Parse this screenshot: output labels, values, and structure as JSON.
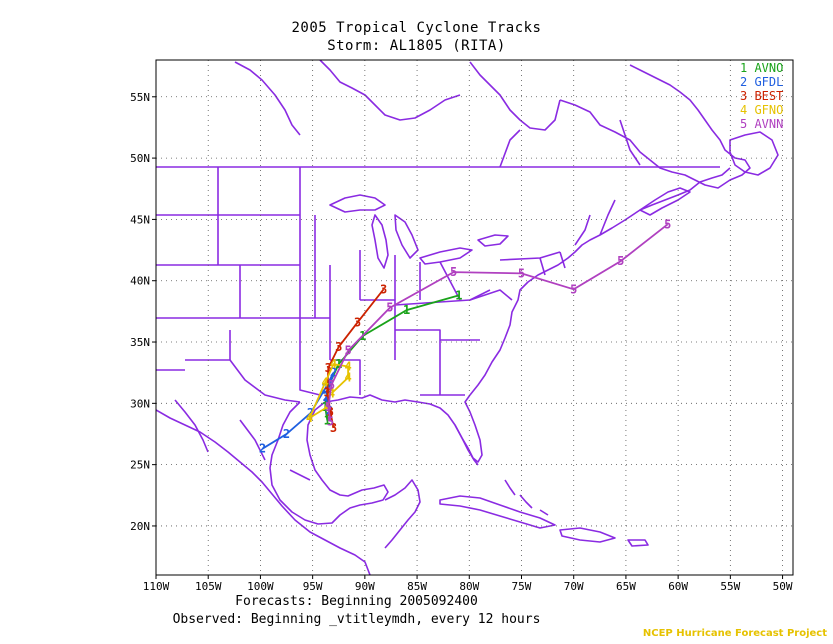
{
  "title": "2005 Tropical Cyclone Tracks",
  "subtitle": "Storm: AL1805 (RITA)",
  "footer_line1": "Forecasts: Beginning 2005092400",
  "footer_line2": "Observed: Beginning _vtitleymdh, every 12 hours",
  "credit": "NCEP Hurricane Forecast Project",
  "colors": {
    "land": "#8a2be2",
    "grid": "#555555",
    "AVNO": "#1aa31a",
    "GFDL": "#1f5fe0",
    "BEST": "#cc2200",
    "GFNO": "#e6c200",
    "AVNN": "#b040c0"
  },
  "legend": [
    {
      "num": "1",
      "name": "AVNO",
      "color_key": "AVNO"
    },
    {
      "num": "2",
      "name": "GFDL",
      "color_key": "GFDL"
    },
    {
      "num": "3",
      "name": "BEST",
      "color_key": "BEST"
    },
    {
      "num": "4",
      "name": "GFNO",
      "color_key": "GFNO"
    },
    {
      "num": "5",
      "name": "AVNN",
      "color_key": "AVNN"
    }
  ],
  "lon_ticks": [
    "110W",
    "105W",
    "100W",
    "95W",
    "90W",
    "85W",
    "80W",
    "75W",
    "70W",
    "65W",
    "60W",
    "55W",
    "50W"
  ],
  "lat_ticks": [
    "20N",
    "25N",
    "30N",
    "35N",
    "40N",
    "45N",
    "50N",
    "55N"
  ],
  "extent": {
    "lon_min": -110,
    "lon_max": -49,
    "lat_min": 16,
    "lat_max": 58
  },
  "tracks": [
    {
      "model": "AVNO",
      "num": "1",
      "points": [
        [
          -93.6,
          28.6
        ],
        [
          -93.8,
          29.7
        ],
        [
          -93.6,
          31.2
        ],
        [
          -92.5,
          33.2
        ],
        [
          -90.2,
          35.5
        ],
        [
          -86.0,
          37.6
        ],
        [
          -81.0,
          38.8
        ]
      ]
    },
    {
      "model": "GFDL",
      "num": "2",
      "points": [
        [
          -93.4,
          29.4
        ],
        [
          -93.7,
          30.5
        ],
        [
          -93.0,
          32.5
        ],
        [
          -93.8,
          31.2
        ],
        [
          -95.2,
          29.2
        ],
        [
          -97.5,
          27.5
        ],
        [
          -99.8,
          26.3
        ]
      ]
    },
    {
      "model": "BEST",
      "num": "3",
      "points": [
        [
          -93.0,
          28.0
        ],
        [
          -93.3,
          29.3
        ],
        [
          -93.6,
          30.9
        ],
        [
          -93.5,
          32.9
        ],
        [
          -92.5,
          34.6
        ],
        [
          -90.7,
          36.6
        ],
        [
          -88.2,
          39.3
        ]
      ]
    },
    {
      "model": "GFNO",
      "num": "4",
      "points": [
        [
          -93.6,
          29.7
        ],
        [
          -95.3,
          28.8
        ],
        [
          -93.8,
          31.7
        ],
        [
          -93.0,
          33.2
        ],
        [
          -91.6,
          33.0
        ],
        [
          -91.6,
          32.1
        ],
        [
          -93.2,
          30.8
        ]
      ]
    },
    {
      "model": "AVNN",
      "num": "5",
      "points": [
        [
          -93.3,
          28.5
        ],
        [
          -93.5,
          29.7
        ],
        [
          -93.2,
          31.5
        ],
        [
          -91.6,
          34.3
        ],
        [
          -87.6,
          37.8
        ],
        [
          -81.5,
          40.7
        ],
        [
          -75.0,
          40.6
        ],
        [
          -70.0,
          39.3
        ],
        [
          -65.5,
          41.6
        ],
        [
          -61.0,
          44.6
        ]
      ]
    }
  ]
}
